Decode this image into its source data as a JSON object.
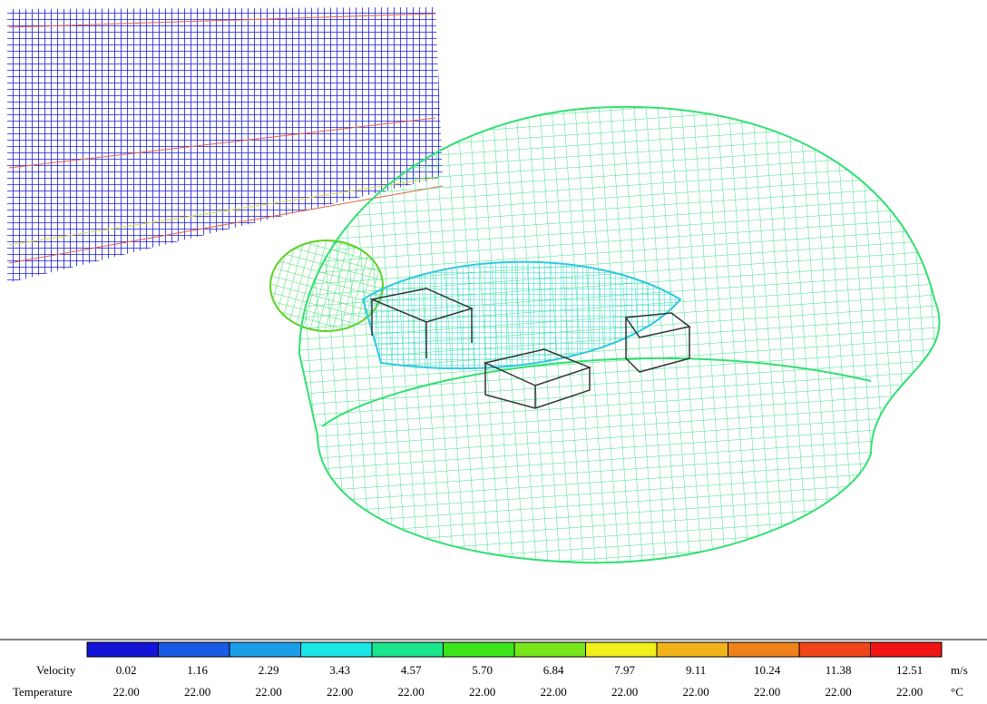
{
  "legend": {
    "colors": [
      "#1414d8",
      "#1a5ae6",
      "#1a9ee8",
      "#1ae6e6",
      "#1ae68c",
      "#3ce61a",
      "#78e61a",
      "#f0f01a",
      "#f0b41a",
      "#f0821a",
      "#f0461a",
      "#f01414"
    ],
    "velocity_label": "Velocity",
    "velocity": [
      "0.02",
      "1.16",
      "2.29",
      "3.43",
      "4.57",
      "5.70",
      "6.84",
      "7.97",
      "9.11",
      "10.24",
      "11.38",
      "12.51"
    ],
    "velocity_unit": "m/s",
    "temperature_label": "Temperature",
    "temperature": [
      "22.00",
      "22.00",
      "22.00",
      "22.00",
      "22.00",
      "22.00",
      "22.00",
      "22.00",
      "22.00",
      "22.00",
      "22.00",
      "22.00"
    ],
    "temperature_unit": "°C"
  }
}
